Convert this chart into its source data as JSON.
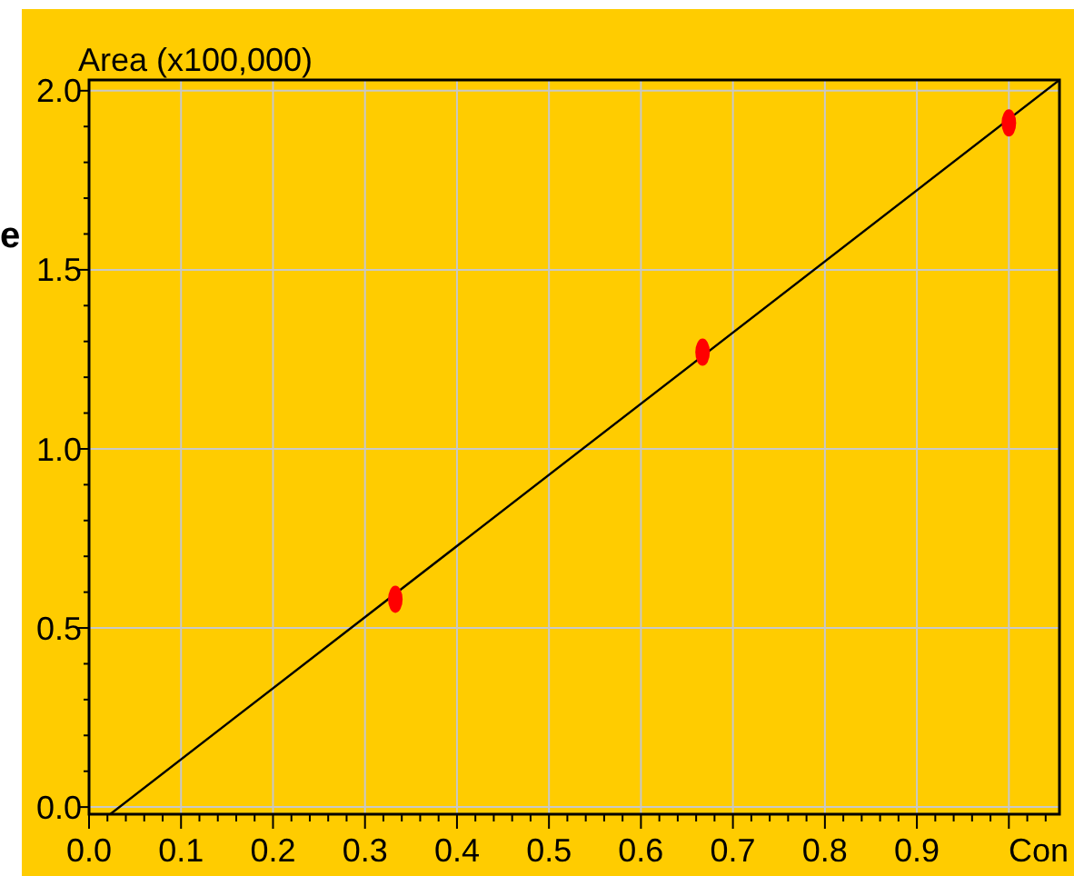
{
  "chart_data": {
    "type": "scatter",
    "xlabel": "Con",
    "ylabel": "Area",
    "annotations": [
      "(x100,000)",
      "e"
    ],
    "xlim": [
      0,
      1.055
    ],
    "ylim": [
      -0.02,
      2.03
    ],
    "xticks": [
      {
        "value": 0,
        "label": "0.0"
      },
      {
        "value": 0.02,
        "label": null
      },
      {
        "value": 0.04,
        "label": null
      },
      {
        "value": 0.06,
        "label": null
      },
      {
        "value": 0.08,
        "label": null
      },
      {
        "value": 0.1,
        "label": "0.1"
      },
      {
        "value": 0.12,
        "label": null
      },
      {
        "value": 0.14,
        "label": null
      },
      {
        "value": 0.16,
        "label": null
      },
      {
        "value": 0.18,
        "label": null
      },
      {
        "value": 0.2,
        "label": "0.2"
      },
      {
        "value": 0.22,
        "label": null
      },
      {
        "value": 0.24,
        "label": null
      },
      {
        "value": 0.26,
        "label": null
      },
      {
        "value": 0.28,
        "label": null
      },
      {
        "value": 0.3,
        "label": "0.3"
      },
      {
        "value": 0.32,
        "label": null
      },
      {
        "value": 0.34,
        "label": null
      },
      {
        "value": 0.36,
        "label": null
      },
      {
        "value": 0.38,
        "label": null
      },
      {
        "value": 0.4,
        "label": "0.4"
      },
      {
        "value": 0.42,
        "label": null
      },
      {
        "value": 0.44,
        "label": null
      },
      {
        "value": 0.46,
        "label": null
      },
      {
        "value": 0.48,
        "label": null
      },
      {
        "value": 0.5,
        "label": "0.5"
      },
      {
        "value": 0.52,
        "label": null
      },
      {
        "value": 0.54,
        "label": null
      },
      {
        "value": 0.56,
        "label": null
      },
      {
        "value": 0.58,
        "label": null
      },
      {
        "value": 0.6,
        "label": "0.6"
      },
      {
        "value": 0.62,
        "label": null
      },
      {
        "value": 0.64,
        "label": null
      },
      {
        "value": 0.66,
        "label": null
      },
      {
        "value": 0.68,
        "label": null
      },
      {
        "value": 0.7,
        "label": "0.7"
      },
      {
        "value": 0.72,
        "label": null
      },
      {
        "value": 0.74,
        "label": null
      },
      {
        "value": 0.76,
        "label": null
      },
      {
        "value": 0.78,
        "label": null
      },
      {
        "value": 0.8,
        "label": "0.8"
      },
      {
        "value": 0.82,
        "label": null
      },
      {
        "value": 0.84,
        "label": null
      },
      {
        "value": 0.86,
        "label": null
      },
      {
        "value": 0.88,
        "label": null
      },
      {
        "value": 0.9,
        "label": "0.9"
      },
      {
        "value": 0.92,
        "label": null
      },
      {
        "value": 0.94,
        "label": null
      },
      {
        "value": 0.96,
        "label": null
      },
      {
        "value": 0.98,
        "label": null
      },
      {
        "value": 1,
        "label": null
      },
      {
        "value": 1.02,
        "label": null
      },
      {
        "value": 1.04,
        "label": null
      }
    ],
    "yticks": [
      {
        "value": 0,
        "label": "0.0"
      },
      {
        "value": 0.1,
        "label": null
      },
      {
        "value": 0.2,
        "label": null
      },
      {
        "value": 0.3,
        "label": null
      },
      {
        "value": 0.4,
        "label": null
      },
      {
        "value": 0.5,
        "label": "0.5"
      },
      {
        "value": 0.6,
        "label": null
      },
      {
        "value": 0.7,
        "label": null
      },
      {
        "value": 0.8,
        "label": null
      },
      {
        "value": 0.9,
        "label": null
      },
      {
        "value": 1,
        "label": "1.0"
      },
      {
        "value": 1.1,
        "label": null
      },
      {
        "value": 1.2,
        "label": null
      },
      {
        "value": 1.3,
        "label": null
      },
      {
        "value": 1.4,
        "label": null
      },
      {
        "value": 1.5,
        "label": "1.5"
      },
      {
        "value": 1.6,
        "label": null
      },
      {
        "value": 1.7,
        "label": null
      },
      {
        "value": 1.8,
        "label": null
      },
      {
        "value": 1.9,
        "label": null
      },
      {
        "value": 2,
        "label": "2.0"
      }
    ],
    "grid": true,
    "series": [
      {
        "type": "line",
        "color": "#000000",
        "x": [
          0.023,
          1.055
        ],
        "values": [
          -0.02,
          2.03
        ]
      },
      {
        "color": "#ff0000",
        "marker": "circle",
        "x": [
          0.333,
          0.667,
          1.0
        ],
        "values": [
          0.58,
          1.27,
          1.91
        ]
      }
    ]
  }
}
